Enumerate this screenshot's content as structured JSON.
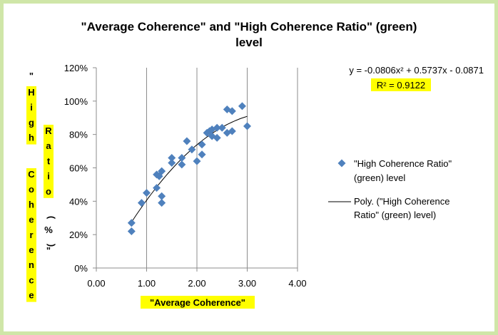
{
  "chart_data": {
    "type": "scatter",
    "title_lines": [
      "\"Average Coherence\" and \"High Coherence Ratio\" (green)",
      "level"
    ],
    "xlabel": "\"Average Coherence\"",
    "ylabel": "\"High Coherence Ratio (%)\"",
    "xlim": [
      0,
      4
    ],
    "ylim": [
      0,
      1.2
    ],
    "x_ticks": [
      "0.00",
      "1.00",
      "2.00",
      "3.00",
      "4.00"
    ],
    "y_ticks": [
      "0%",
      "20%",
      "40%",
      "60%",
      "80%",
      "100%",
      "120%"
    ],
    "grid": "vertical",
    "legend_position": "right",
    "series": [
      {
        "name": "\"High Coherence Ratio\" (green) level",
        "marker": "diamond",
        "color": "#4f81bd",
        "x": [
          0.7,
          0.7,
          0.9,
          1.0,
          1.2,
          1.2,
          1.25,
          1.3,
          1.3,
          1.3,
          1.5,
          1.5,
          1.7,
          1.7,
          1.8,
          1.9,
          2.0,
          2.1,
          2.1,
          2.2,
          2.25,
          2.3,
          2.3,
          2.4,
          2.4,
          2.5,
          2.6,
          2.6,
          2.7,
          2.7,
          2.9,
          3.0
        ],
        "y": [
          0.22,
          0.27,
          0.39,
          0.45,
          0.48,
          0.56,
          0.55,
          0.58,
          0.39,
          0.43,
          0.63,
          0.66,
          0.62,
          0.66,
          0.76,
          0.71,
          0.64,
          0.74,
          0.68,
          0.81,
          0.82,
          0.83,
          0.79,
          0.78,
          0.84,
          0.84,
          0.81,
          0.95,
          0.82,
          0.94,
          0.97,
          0.85
        ]
      },
      {
        "name": "Poly. (\"High Coherence Ratio\" (green) level)",
        "type": "trendline",
        "color": "#000000",
        "fit": "polynomial",
        "coefficients": {
          "a": -0.0806,
          "b": 0.5737,
          "c": -0.0871
        },
        "x_range": [
          0.7,
          3.0
        ]
      }
    ],
    "equation_label": "y = -0.0806x² + 0.5737x - 0.0871",
    "r2_label": "R² = 0.9122",
    "highlight_color": "#ffff00"
  }
}
